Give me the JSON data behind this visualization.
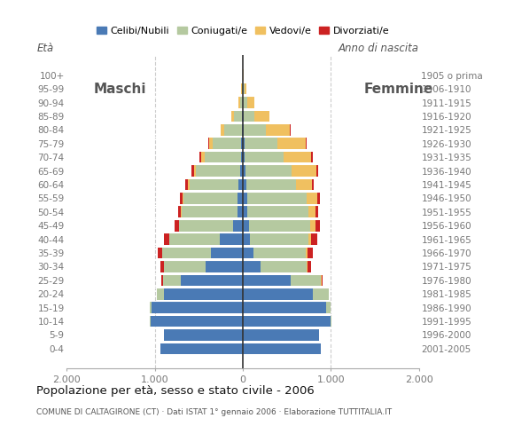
{
  "title": "Popolazione per età, sesso e stato civile - 2006",
  "subtitle": "COMUNE DI CALTAGIRONE (CT) · Dati ISTAT 1° gennaio 2006 · Elaborazione TUTTITALIA.IT",
  "age_groups_bottom_to_top": [
    "0-4",
    "5-9",
    "10-14",
    "15-19",
    "20-24",
    "25-29",
    "30-34",
    "35-39",
    "40-44",
    "45-49",
    "50-54",
    "55-59",
    "60-64",
    "65-69",
    "70-74",
    "75-79",
    "80-84",
    "85-89",
    "90-94",
    "95-99",
    "100+"
  ],
  "birth_years_bottom_to_top": [
    "2001-2005",
    "1996-2000",
    "1991-1995",
    "1986-1990",
    "1981-1985",
    "1976-1980",
    "1971-1975",
    "1966-1970",
    "1961-1965",
    "1956-1960",
    "1951-1955",
    "1946-1950",
    "1941-1945",
    "1936-1940",
    "1931-1935",
    "1926-1930",
    "1921-1925",
    "1916-1920",
    "1911-1915",
    "1906-1910",
    "1905 o prima"
  ],
  "males": {
    "celibe": [
      940,
      900,
      1050,
      1040,
      900,
      710,
      420,
      360,
      260,
      110,
      65,
      60,
      50,
      35,
      25,
      18,
      12,
      8,
      4,
      0,
      0
    ],
    "coniugato": [
      0,
      1,
      4,
      18,
      75,
      195,
      475,
      555,
      575,
      615,
      635,
      615,
      555,
      495,
      410,
      320,
      195,
      95,
      30,
      12,
      3
    ],
    "vedovo": [
      0,
      0,
      0,
      0,
      0,
      1,
      1,
      2,
      2,
      5,
      5,
      10,
      18,
      28,
      38,
      48,
      48,
      28,
      18,
      4,
      1
    ],
    "divorziato": [
      0,
      0,
      0,
      2,
      5,
      16,
      42,
      52,
      62,
      42,
      32,
      32,
      32,
      22,
      16,
      12,
      2,
      0,
      0,
      0,
      0
    ]
  },
  "females": {
    "nubile": [
      885,
      865,
      995,
      945,
      795,
      545,
      198,
      118,
      78,
      68,
      52,
      48,
      38,
      28,
      22,
      18,
      12,
      8,
      4,
      0,
      0
    ],
    "coniugata": [
      0,
      2,
      8,
      48,
      178,
      345,
      525,
      595,
      665,
      695,
      695,
      675,
      565,
      525,
      445,
      375,
      248,
      118,
      48,
      18,
      4
    ],
    "vedova": [
      0,
      0,
      0,
      0,
      2,
      4,
      8,
      18,
      28,
      58,
      78,
      118,
      178,
      278,
      308,
      318,
      278,
      178,
      78,
      18,
      4
    ],
    "divorziata": [
      0,
      0,
      0,
      2,
      5,
      16,
      42,
      62,
      72,
      56,
      32,
      32,
      26,
      26,
      16,
      12,
      2,
      0,
      0,
      0,
      0
    ]
  },
  "colors": {
    "celibe": "#4a7ab5",
    "coniugato": "#b5c9a0",
    "vedovo": "#f0c060",
    "divorziato": "#cc2222"
  },
  "xlim": 2000,
  "xticks": [
    -2000,
    -1000,
    0,
    1000,
    2000
  ],
  "xticklabels": [
    "2.000",
    "1.000",
    "0",
    "1.000",
    "2.000"
  ],
  "background_color": "#ffffff",
  "legend_labels": [
    "Celibi/Nubili",
    "Coniugati/e",
    "Vedovi/e",
    "Divorziati/e"
  ]
}
